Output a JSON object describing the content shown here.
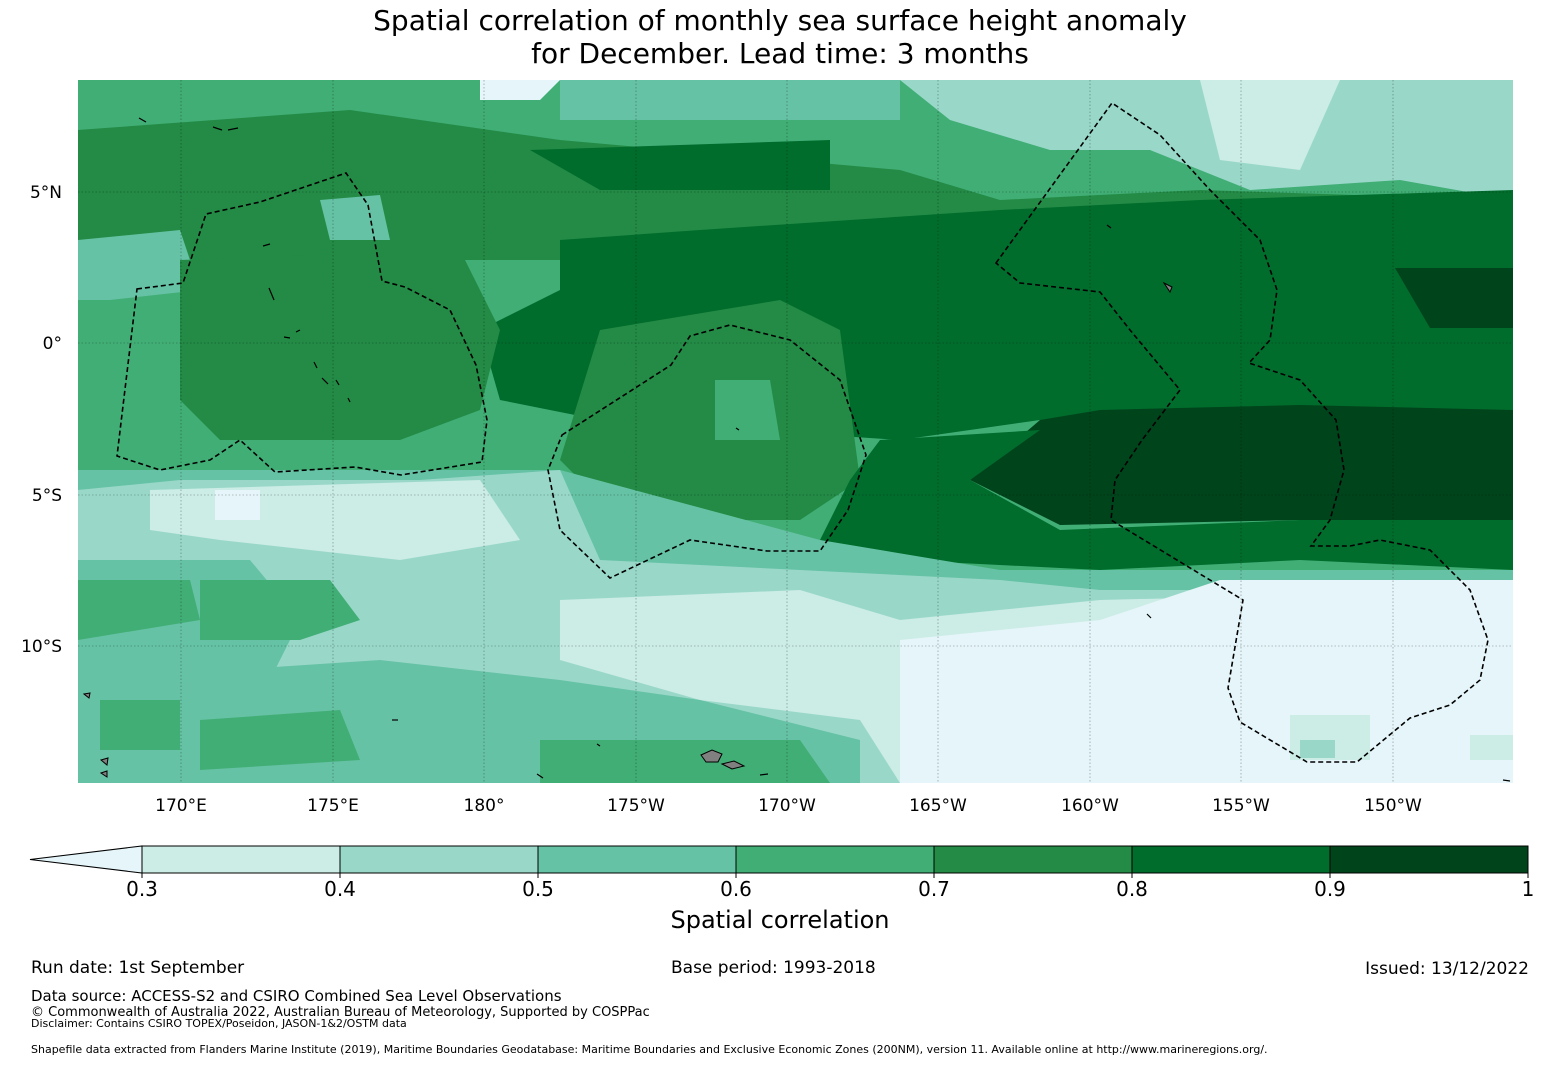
{
  "title_line1": "Spatial correlation of monthly sea surface height anomaly",
  "title_line2": "for December. Lead time: 3 months",
  "map": {
    "lon_range": [
      166.7,
      213.9
    ],
    "lat_range": [
      -14.3,
      8.8
    ],
    "lon_ticks": [
      {
        "value": 170,
        "label": "170°E"
      },
      {
        "value": 175,
        "label": "175°E"
      },
      {
        "value": 180,
        "label": "180°"
      },
      {
        "value": 185,
        "label": "175°W"
      },
      {
        "value": 190,
        "label": "170°W"
      },
      {
        "value": 195,
        "label": "165°W"
      },
      {
        "value": 200,
        "label": "160°W"
      },
      {
        "value": 205,
        "label": "155°W"
      },
      {
        "value": 210,
        "label": "150°W"
      }
    ],
    "lat_ticks": [
      {
        "value": 5,
        "label": "5°N"
      },
      {
        "value": 0,
        "label": "0°"
      },
      {
        "value": -5,
        "label": "5°S"
      },
      {
        "value": -10,
        "label": "10°S"
      }
    ]
  },
  "colorbar": {
    "title": "Spatial correlation",
    "ticks": [
      "0.3",
      "0.4",
      "0.5",
      "0.6",
      "0.7",
      "0.8",
      "0.9",
      "1"
    ],
    "under_color": "#e5f5f9",
    "colors": [
      "#ccece6",
      "#99d8c9",
      "#66c2a4",
      "#41ae76",
      "#238b45",
      "#006d2c",
      "#00441b"
    ]
  },
  "footer": {
    "run_date": "Run date: 1st September",
    "base_period": "Base period: 1993-2018",
    "issued": "Issued: 13/12/2022",
    "data_source": "Data source: ACCESS-S2 and CSIRO Combined Sea Level Observations",
    "copyright": "© Commonwealth of Australia 2022, Australian Bureau of Meteorology, Supported by COSPPac",
    "disclaimer": "Disclaimer: Contains CSIRO TOPEX/Poseidon, JASON-1&2/OSTM data",
    "shapefile": "Shapefile data extracted from Flanders Marine Institute (2019), Maritime Boundaries Geodatabase: Maritime Boundaries and Exclusive Economic Zones (200NM), version 11. Available online at http://www.marineregions.org/."
  }
}
